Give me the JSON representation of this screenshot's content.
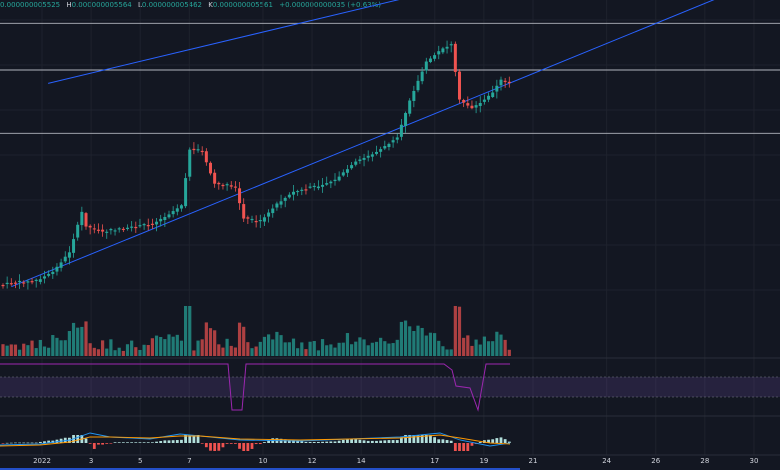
{
  "ohlc": {
    "open_partial": "0.000000005525",
    "h_label": "H",
    "high": "0.000000005564",
    "l_label": "L",
    "low": "0.000000005462",
    "c_label": "K",
    "close": "0.000000005561",
    "change": "+0.000000000035 (+0.63%)"
  },
  "colors": {
    "background": "#131722",
    "up": "#26a69a",
    "down": "#ef5350",
    "channel_line": "#2962ff",
    "horizontal_line": "#b2b5be",
    "rsi_line": "#9c27b0",
    "macd_line": "#2196f3",
    "signal_line": "#ff9800"
  },
  "chart_data": {
    "type": "candlestick",
    "x_ticks": [
      "2022",
      "3",
      "5",
      "7",
      "10",
      "12",
      "14",
      "17",
      "19",
      "21",
      "24",
      "26",
      "28",
      "30"
    ],
    "x_tick_days": [
      1,
      3,
      5,
      7,
      10,
      12,
      14,
      17,
      19,
      21,
      24,
      26,
      28,
      30
    ],
    "candles_count": 123,
    "price_range": [
      3.9e-09,
      5.7e-09
    ],
    "horizontal_levels": [
      5.56e-09,
      5.28e-09,
      4.9e-09
    ],
    "channel_upper": [
      [
        1.25,
        5.2e-09
      ],
      [
        24,
        6e-09
      ]
    ],
    "channel_lower": [
      [
        -0.25,
        3.98e-09
      ],
      [
        30,
        5.8e-09
      ]
    ],
    "rsi_band": [
      30,
      70
    ]
  }
}
